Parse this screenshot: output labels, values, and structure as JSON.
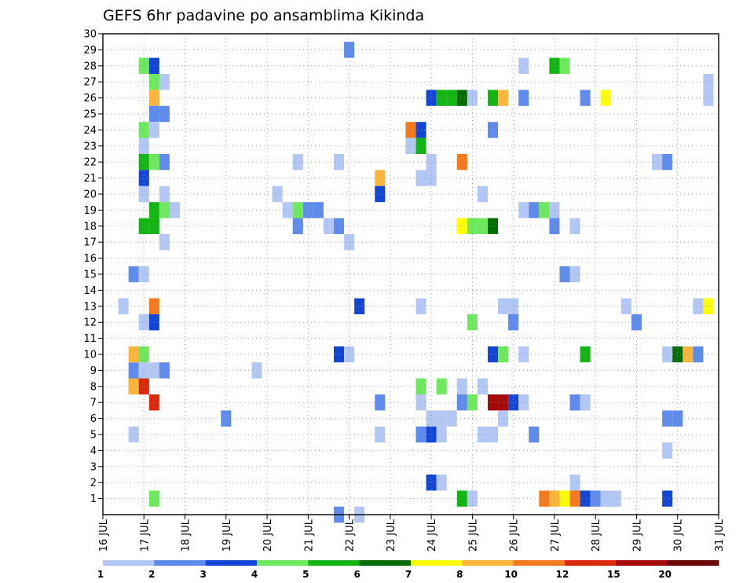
{
  "chart_data": {
    "type": "heatmap",
    "title": "GEFS 6hr padavine po ansamblima Kikinda",
    "xlabel": "",
    "ylabel": "",
    "x_ticks": [
      "16 JUL",
      "17 JUL",
      "18 JUL",
      "19 JUL",
      "20 JUL",
      "21 JUL",
      "22 JUL",
      "23 JUL",
      "24 JUL",
      "25 JUL",
      "26 JUL",
      "27 JUL",
      "28 JUL",
      "29 JUL",
      "30 JUL",
      "31 JUL"
    ],
    "xlim": [
      16,
      31
    ],
    "y_ticks": [
      "1",
      "2",
      "3",
      "4",
      "5",
      "6",
      "7",
      "8",
      "9",
      "10",
      "11",
      "12",
      "13",
      "14",
      "15",
      "16",
      "17",
      "18",
      "19",
      "20",
      "21",
      "22",
      "23",
      "24",
      "25",
      "26",
      "27",
      "28",
      "29",
      "30"
    ],
    "ylim": [
      0,
      30
    ],
    "grid": true,
    "x_step": 0.25,
    "colorbar": {
      "boundaries": [
        "1",
        "2",
        "3",
        "4",
        "5",
        "6",
        "7",
        "8",
        "10",
        "12",
        "15",
        "20"
      ],
      "colors": [
        "#b3c7f5",
        "#5f8cec",
        "#1446d6",
        "#6ee85c",
        "#13b513",
        "#056b05",
        "#ffff00",
        "#ffb43c",
        "#f57a1e",
        "#d92a0a",
        "#a50a0a",
        "#6b0606"
      ]
    },
    "cells": [
      {
        "x": 16.5,
        "y": 13,
        "v": 1.5
      },
      {
        "x": 16.75,
        "y": 9,
        "v": 2.5
      },
      {
        "x": 16.75,
        "y": 8,
        "v": 2.5
      },
      {
        "x": 17.0,
        "y": 28,
        "v": 4.5
      },
      {
        "x": 17.25,
        "y": 28,
        "v": 3.5
      },
      {
        "x": 17.25,
        "y": 27,
        "v": 4.5
      },
      {
        "x": 17.5,
        "y": 27,
        "v": 1.5
      },
      {
        "x": 17.25,
        "y": 26,
        "v": 9
      },
      {
        "x": 17.25,
        "y": 25,
        "v": 2.5
      },
      {
        "x": 17.5,
        "y": 25,
        "v": 2.5
      },
      {
        "x": 17.0,
        "y": 24,
        "v": 4.5
      },
      {
        "x": 17.25,
        "y": 24,
        "v": 1.5
      },
      {
        "x": 17.0,
        "y": 23,
        "v": 1.5
      },
      {
        "x": 17.0,
        "y": 22,
        "v": 5.5
      },
      {
        "x": 17.25,
        "y": 22,
        "v": 4.5
      },
      {
        "x": 17.5,
        "y": 22,
        "v": 2.5
      },
      {
        "x": 17.0,
        "y": 21,
        "v": 3.5
      },
      {
        "x": 17.0,
        "y": 20,
        "v": 1.5
      },
      {
        "x": 17.5,
        "y": 20,
        "v": 1.5
      },
      {
        "x": 17.25,
        "y": 19,
        "v": 5.5
      },
      {
        "x": 17.5,
        "y": 19,
        "v": 4.5
      },
      {
        "x": 17.75,
        "y": 19,
        "v": 1.5
      },
      {
        "x": 17.0,
        "y": 18,
        "v": 5.5
      },
      {
        "x": 17.25,
        "y": 18,
        "v": 5.5
      },
      {
        "x": 17.5,
        "y": 17,
        "v": 1.5
      },
      {
        "x": 16.75,
        "y": 15,
        "v": 2.5
      },
      {
        "x": 17.0,
        "y": 15,
        "v": 1.5
      },
      {
        "x": 17.25,
        "y": 13,
        "v": 11
      },
      {
        "x": 17.0,
        "y": 12,
        "v": 1.5
      },
      {
        "x": 17.25,
        "y": 12,
        "v": 3.5
      },
      {
        "x": 16.75,
        "y": 10,
        "v": 9
      },
      {
        "x": 17.0,
        "y": 10,
        "v": 4.5
      },
      {
        "x": 17.0,
        "y": 9,
        "v": 1.5
      },
      {
        "x": 17.25,
        "y": 9,
        "v": 1.5
      },
      {
        "x": 17.5,
        "y": 9,
        "v": 2.5
      },
      {
        "x": 16.75,
        "y": 8,
        "v": 9
      },
      {
        "x": 17.0,
        "y": 8,
        "v": 13
      },
      {
        "x": 17.25,
        "y": 7,
        "v": 13
      },
      {
        "x": 16.75,
        "y": 5,
        "v": 1.5
      },
      {
        "x": 17.25,
        "y": 1,
        "v": 4.5
      },
      {
        "x": 19.0,
        "y": 6,
        "v": 2.5
      },
      {
        "x": 19.75,
        "y": 9,
        "v": 1.5
      },
      {
        "x": 20.25,
        "y": 20,
        "v": 1.5
      },
      {
        "x": 20.5,
        "y": 19,
        "v": 1.5
      },
      {
        "x": 20.75,
        "y": 19,
        "v": 4.5
      },
      {
        "x": 21.0,
        "y": 19,
        "v": 2.5
      },
      {
        "x": 21.25,
        "y": 19,
        "v": 2.5
      },
      {
        "x": 20.75,
        "y": 18,
        "v": 2.5
      },
      {
        "x": 20.75,
        "y": 22,
        "v": 1.5
      },
      {
        "x": 21.75,
        "y": 22,
        "v": 1.5
      },
      {
        "x": 21.5,
        "y": 18,
        "v": 1.5
      },
      {
        "x": 21.75,
        "y": 18,
        "v": 2.5
      },
      {
        "x": 22.0,
        "y": 17,
        "v": 1.5
      },
      {
        "x": 22.0,
        "y": 29,
        "v": 2.5
      },
      {
        "x": 21.75,
        "y": 10,
        "v": 3.5
      },
      {
        "x": 22.0,
        "y": 10,
        "v": 1.5
      },
      {
        "x": 22.25,
        "y": 13,
        "v": 3.5
      },
      {
        "x": 21.75,
        "y": 0,
        "v": 2.5
      },
      {
        "x": 22.25,
        "y": 0,
        "v": 1.5
      },
      {
        "x": 22.75,
        "y": 21,
        "v": 9
      },
      {
        "x": 22.75,
        "y": 20,
        "v": 3.5
      },
      {
        "x": 22.75,
        "y": 7,
        "v": 2.5
      },
      {
        "x": 22.75,
        "y": 5,
        "v": 1.5
      },
      {
        "x": 23.5,
        "y": 24,
        "v": 11
      },
      {
        "x": 23.75,
        "y": 24,
        "v": 3.5
      },
      {
        "x": 23.5,
        "y": 23,
        "v": 1.5
      },
      {
        "x": 23.75,
        "y": 23,
        "v": 5.5
      },
      {
        "x": 24.0,
        "y": 22,
        "v": 1.5
      },
      {
        "x": 23.75,
        "y": 21,
        "v": 1.5
      },
      {
        "x": 24.0,
        "y": 21,
        "v": 1.5
      },
      {
        "x": 24.0,
        "y": 26,
        "v": 3.5
      },
      {
        "x": 24.25,
        "y": 26,
        "v": 5.5
      },
      {
        "x": 24.5,
        "y": 26,
        "v": 5.5
      },
      {
        "x": 24.75,
        "y": 26,
        "v": 6.5
      },
      {
        "x": 25.0,
        "y": 26,
        "v": 1.5
      },
      {
        "x": 24.75,
        "y": 22,
        "v": 11
      },
      {
        "x": 23.75,
        "y": 13,
        "v": 1.5
      },
      {
        "x": 23.75,
        "y": 8,
        "v": 4.5
      },
      {
        "x": 24.25,
        "y": 8,
        "v": 4.5
      },
      {
        "x": 23.75,
        "y": 7,
        "v": 1.5
      },
      {
        "x": 24.0,
        "y": 6,
        "v": 1.5
      },
      {
        "x": 24.25,
        "y": 6,
        "v": 1.5
      },
      {
        "x": 24.5,
        "y": 6,
        "v": 1.5
      },
      {
        "x": 23.75,
        "y": 5,
        "v": 2.5
      },
      {
        "x": 24.0,
        "y": 5,
        "v": 3.5
      },
      {
        "x": 24.25,
        "y": 5,
        "v": 1.5
      },
      {
        "x": 24.0,
        "y": 2,
        "v": 3.5
      },
      {
        "x": 24.25,
        "y": 2,
        "v": 1.5
      },
      {
        "x": 24.75,
        "y": 18,
        "v": 7.5
      },
      {
        "x": 25.0,
        "y": 18,
        "v": 4.5
      },
      {
        "x": 25.25,
        "y": 18,
        "v": 4.5
      },
      {
        "x": 25.5,
        "y": 18,
        "v": 6.5
      },
      {
        "x": 24.75,
        "y": 8,
        "v": 1.5
      },
      {
        "x": 24.75,
        "y": 7,
        "v": 2.5
      },
      {
        "x": 25.0,
        "y": 7,
        "v": 4.5
      },
      {
        "x": 25.25,
        "y": 8,
        "v": 1.5
      },
      {
        "x": 25.0,
        "y": 12,
        "v": 4.5
      },
      {
        "x": 24.75,
        "y": 1,
        "v": 5.5
      },
      {
        "x": 25.0,
        "y": 1,
        "v": 1.5
      },
      {
        "x": 25.25,
        "y": 20,
        "v": 1.5
      },
      {
        "x": 25.5,
        "y": 26,
        "v": 5.5
      },
      {
        "x": 25.75,
        "y": 26,
        "v": 9
      },
      {
        "x": 26.25,
        "y": 26,
        "v": 2.5
      },
      {
        "x": 25.5,
        "y": 24,
        "v": 2.5
      },
      {
        "x": 25.25,
        "y": 5,
        "v": 1.5
      },
      {
        "x": 25.5,
        "y": 5,
        "v": 1.5
      },
      {
        "x": 25.5,
        "y": 7,
        "v": 17
      },
      {
        "x": 25.75,
        "y": 7,
        "v": 17
      },
      {
        "x": 26.0,
        "y": 7,
        "v": 3.5
      },
      {
        "x": 26.25,
        "y": 7,
        "v": 1.5
      },
      {
        "x": 25.75,
        "y": 6,
        "v": 1.5
      },
      {
        "x": 25.5,
        "y": 10,
        "v": 3.5
      },
      {
        "x": 25.75,
        "y": 10,
        "v": 4.5
      },
      {
        "x": 26.25,
        "y": 10,
        "v": 1.5
      },
      {
        "x": 25.75,
        "y": 13,
        "v": 1.5
      },
      {
        "x": 26.0,
        "y": 13,
        "v": 1.5
      },
      {
        "x": 26.0,
        "y": 12,
        "v": 2.5
      },
      {
        "x": 26.25,
        "y": 28,
        "v": 1.5
      },
      {
        "x": 26.25,
        "y": 19,
        "v": 1.5
      },
      {
        "x": 26.5,
        "y": 19,
        "v": 2.5
      },
      {
        "x": 26.75,
        "y": 19,
        "v": 4.5
      },
      {
        "x": 27.0,
        "y": 19,
        "v": 1.5
      },
      {
        "x": 27.0,
        "y": 18,
        "v": 2.5
      },
      {
        "x": 27.5,
        "y": 18,
        "v": 1.5
      },
      {
        "x": 26.5,
        "y": 5,
        "v": 2.5
      },
      {
        "x": 27.0,
        "y": 28,
        "v": 5.5
      },
      {
        "x": 27.25,
        "y": 28,
        "v": 4.5
      },
      {
        "x": 27.75,
        "y": 26,
        "v": 2.5
      },
      {
        "x": 28.25,
        "y": 26,
        "v": 7.5
      },
      {
        "x": 27.25,
        "y": 15,
        "v": 2.5
      },
      {
        "x": 27.5,
        "y": 15,
        "v": 1.5
      },
      {
        "x": 27.75,
        "y": 10,
        "v": 5.5
      },
      {
        "x": 27.5,
        "y": 7,
        "v": 2.5
      },
      {
        "x": 27.75,
        "y": 7,
        "v": 1.5
      },
      {
        "x": 27.5,
        "y": 2,
        "v": 1.5
      },
      {
        "x": 26.75,
        "y": 1,
        "v": 11
      },
      {
        "x": 27.0,
        "y": 1,
        "v": 9
      },
      {
        "x": 27.25,
        "y": 1,
        "v": 7.5
      },
      {
        "x": 27.5,
        "y": 1,
        "v": 11
      },
      {
        "x": 27.75,
        "y": 1,
        "v": 3.5
      },
      {
        "x": 28.0,
        "y": 1,
        "v": 2.5
      },
      {
        "x": 28.25,
        "y": 1,
        "v": 1.5
      },
      {
        "x": 28.5,
        "y": 1,
        "v": 1.5
      },
      {
        "x": 29.75,
        "y": 1,
        "v": 3.5
      },
      {
        "x": 28.75,
        "y": 13,
        "v": 1.5
      },
      {
        "x": 29.0,
        "y": 12,
        "v": 2.5
      },
      {
        "x": 29.5,
        "y": 22,
        "v": 1.5
      },
      {
        "x": 29.75,
        "y": 22,
        "v": 2.5
      },
      {
        "x": 29.75,
        "y": 10,
        "v": 1.5
      },
      {
        "x": 30.0,
        "y": 10,
        "v": 6.5
      },
      {
        "x": 30.25,
        "y": 10,
        "v": 9
      },
      {
        "x": 30.5,
        "y": 10,
        "v": 2.5
      },
      {
        "x": 30.5,
        "y": 13,
        "v": 1.5
      },
      {
        "x": 30.75,
        "y": 13,
        "v": 7.5
      },
      {
        "x": 30.75,
        "y": 27,
        "v": 1.5
      },
      {
        "x": 30.75,
        "y": 26,
        "v": 1.5
      },
      {
        "x": 29.75,
        "y": 6,
        "v": 2.5
      },
      {
        "x": 30.0,
        "y": 6,
        "v": 2.5
      },
      {
        "x": 29.75,
        "y": 4,
        "v": 1.5
      }
    ]
  }
}
